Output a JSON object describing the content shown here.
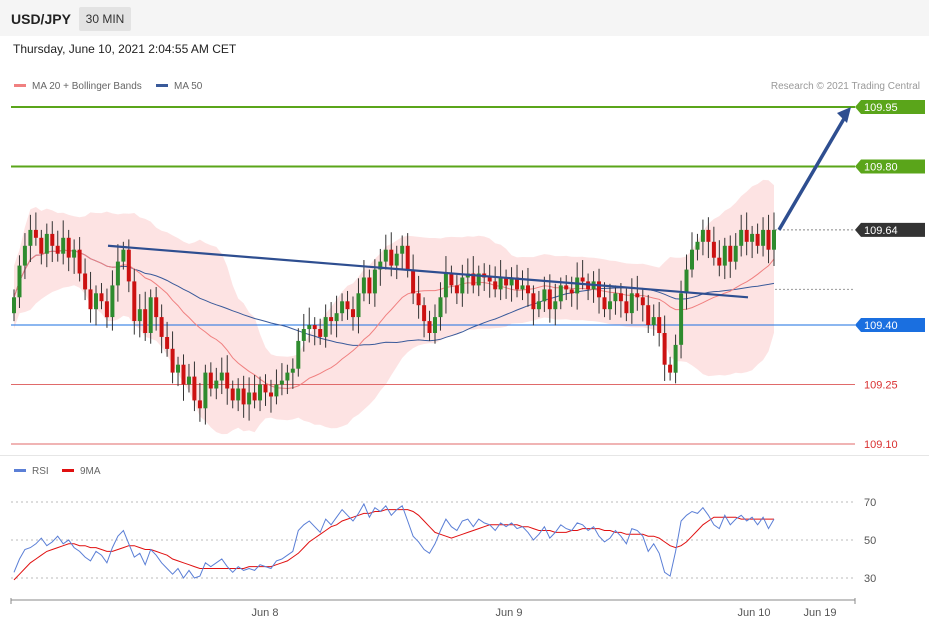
{
  "header": {
    "symbol": "USD/JPY",
    "timeframe": "30 MIN",
    "datetime": "Thursday, June 10, 2021 2:04:55 AM CET"
  },
  "legend": {
    "ma20_label": "MA 20 + Bollinger Bands",
    "ma50_label": "MA 50",
    "rsi_label": "RSI",
    "rsi_ma_label": "9MA",
    "credit": "Research © 2021 Trading Central"
  },
  "colors": {
    "up": "#2e8b2e",
    "down": "#cc1111",
    "band_fill": "#fde0e0",
    "ma20": "#f08080",
    "ma50": "#3a5a9a",
    "green_level": "#5aa51a",
    "blue_level": "#1a6fe0",
    "red_level": "#e06a6a",
    "trend": "#2e4e90",
    "rsi": "#5b7fd6",
    "rsi_ma": "#e01010"
  },
  "chart_data": [
    {
      "type": "candlestick",
      "title": "USD/JPY",
      "xlabel": "",
      "ylabel": "",
      "x_ticks": [
        "Jun 8",
        "Jun 9",
        "Jun 10",
        "Jun 19"
      ],
      "price_levels": [
        {
          "value": 109.95,
          "label": "109.95",
          "kind": "resistance"
        },
        {
          "value": 109.8,
          "label": "109.80",
          "kind": "resistance"
        },
        {
          "value": 109.64,
          "label": "109.64",
          "kind": "current"
        },
        {
          "value": 109.4,
          "label": "109.40",
          "kind": "pivot"
        },
        {
          "value": 109.25,
          "label": "109.25",
          "kind": "support"
        },
        {
          "value": 109.1,
          "label": "109.10",
          "kind": "support"
        }
      ],
      "close": [
        109.47,
        109.55,
        109.6,
        109.64,
        109.62,
        109.58,
        109.63,
        109.6,
        109.58,
        109.62,
        109.57,
        109.59,
        109.53,
        109.49,
        109.44,
        109.48,
        109.46,
        109.42,
        109.5,
        109.56,
        109.59,
        109.51,
        109.41,
        109.44,
        109.38,
        109.47,
        109.42,
        109.37,
        109.34,
        109.28,
        109.3,
        109.25,
        109.27,
        109.21,
        109.19,
        109.28,
        109.24,
        109.26,
        109.28,
        109.24,
        109.21,
        109.24,
        109.2,
        109.23,
        109.21,
        109.25,
        109.23,
        109.22,
        109.25,
        109.26,
        109.28,
        109.29,
        109.36,
        109.39,
        109.4,
        109.39,
        109.37,
        109.42,
        109.41,
        109.43,
        109.46,
        109.44,
        109.42,
        109.48,
        109.52,
        109.48,
        109.54,
        109.56,
        109.59,
        109.55,
        109.58,
        109.6,
        109.54,
        109.48,
        109.45,
        109.41,
        109.38,
        109.42,
        109.47,
        109.53,
        109.5,
        109.48,
        109.52,
        109.53,
        109.5,
        109.53,
        109.52,
        109.51,
        109.49,
        109.52,
        109.5,
        109.52,
        109.49,
        109.5,
        109.48,
        109.44,
        109.46,
        109.49,
        109.44,
        109.46,
        109.5,
        109.49,
        109.48,
        109.52,
        109.51,
        109.49,
        109.51,
        109.47,
        109.44,
        109.46,
        109.48,
        109.46,
        109.43,
        109.48,
        109.47,
        109.45,
        109.4,
        109.42,
        109.38,
        109.3,
        109.28,
        109.35,
        109.48,
        109.54,
        109.59,
        109.61,
        109.64,
        109.61,
        109.57,
        109.55,
        109.6,
        109.56,
        109.6,
        109.64,
        109.61,
        109.63,
        109.6,
        109.64,
        109.59,
        109.64
      ],
      "trendline": {
        "from": 109.6,
        "to": 109.47
      },
      "projection_target": 109.95,
      "ma20_final": 109.6,
      "ma50_final": 109.49
    },
    {
      "type": "line",
      "title": "RSI",
      "xlabel": "",
      "ylabel": "",
      "y_ticks": [
        70,
        50,
        30
      ],
      "rsi": [
        33,
        40,
        45,
        46,
        48,
        51,
        47,
        49,
        52,
        48,
        50,
        46,
        44,
        41,
        39,
        44,
        42,
        38,
        46,
        52,
        55,
        48,
        41,
        43,
        37,
        45,
        42,
        38,
        35,
        32,
        35,
        30,
        34,
        30,
        31,
        38,
        36,
        38,
        40,
        36,
        33,
        36,
        34,
        35,
        34,
        37,
        36,
        35,
        39,
        40,
        42,
        44,
        55,
        58,
        60,
        57,
        54,
        61,
        58,
        62,
        66,
        63,
        60,
        64,
        69,
        62,
        67,
        65,
        68,
        63,
        66,
        68,
        60,
        52,
        49,
        45,
        43,
        48,
        55,
        61,
        57,
        55,
        60,
        61,
        57,
        61,
        59,
        58,
        55,
        59,
        57,
        59,
        56,
        57,
        54,
        50,
        53,
        57,
        51,
        54,
        58,
        56,
        55,
        59,
        58,
        55,
        57,
        52,
        49,
        51,
        55,
        52,
        48,
        56,
        55,
        52,
        44,
        48,
        43,
        33,
        31,
        44,
        60,
        63,
        65,
        64,
        67,
        63,
        58,
        56,
        63,
        58,
        61,
        63,
        60,
        62,
        58,
        62,
        56,
        61
      ],
      "rsi_ma": [
        29,
        32,
        35,
        38,
        40,
        42,
        44,
        45,
        46,
        47,
        48,
        48,
        47,
        47,
        46,
        46,
        45,
        44,
        44,
        45,
        46,
        47,
        47,
        46,
        45,
        45,
        44,
        43,
        42,
        40,
        39,
        38,
        37,
        36,
        35,
        35,
        35,
        35,
        35,
        35,
        35,
        35,
        35,
        36,
        36,
        36,
        36,
        36,
        37,
        38,
        39,
        41,
        43,
        46,
        49,
        51,
        53,
        55,
        57,
        58,
        60,
        61,
        62,
        63,
        64,
        64,
        65,
        65,
        66,
        66,
        66,
        66,
        66,
        65,
        63,
        60,
        57,
        54,
        53,
        52,
        51,
        52,
        53,
        54,
        55,
        56,
        57,
        58,
        58,
        58,
        58,
        58,
        58,
        57,
        57,
        56,
        55,
        55,
        55,
        54,
        54,
        54,
        55,
        55,
        56,
        56,
        56,
        56,
        55,
        55,
        54,
        54,
        53,
        53,
        53,
        53,
        52,
        52,
        51,
        49,
        47,
        46,
        47,
        49,
        52,
        55,
        58,
        60,
        62,
        62,
        62,
        62,
        62,
        61,
        61,
        61,
        61,
        61,
        61,
        61
      ]
    }
  ],
  "axis": {
    "rsi_ticks": [
      "70",
      "50",
      "30"
    ],
    "x_ticks": [
      "Jun 8",
      "Jun 9",
      "Jun 10",
      "Jun 19"
    ]
  }
}
